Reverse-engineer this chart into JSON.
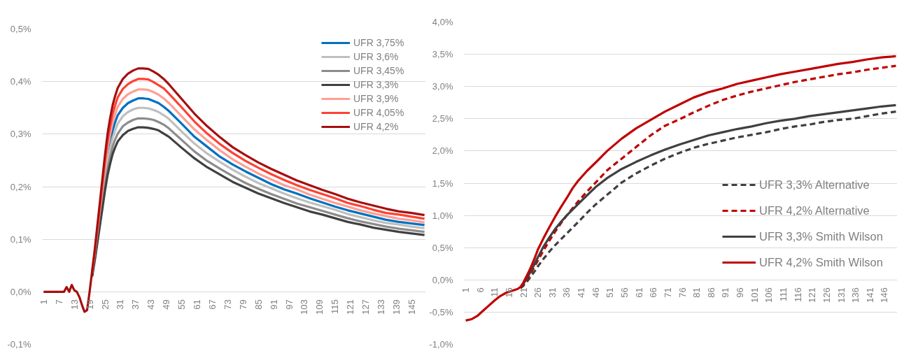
{
  "chart_data": [
    {
      "type": "line",
      "legend": "top right",
      "grid": "y",
      "line_style": "solid",
      "xlim": [
        0.5,
        150.5
      ],
      "xticks": [
        1,
        7,
        13,
        19,
        25,
        31,
        37,
        43,
        49,
        55,
        61,
        67,
        73,
        79,
        85,
        91,
        97,
        103,
        109,
        115,
        121,
        127,
        133,
        139,
        145
      ],
      "ylim": [
        -0.1,
        0.5
      ],
      "yticks": [
        {
          "value": -0.1,
          "label": "-0,1%"
        },
        {
          "value": 0.0,
          "label": "0,0%"
        },
        {
          "value": 0.1,
          "label": "0,1%"
        },
        {
          "value": 0.2,
          "label": "0,2%"
        },
        {
          "value": 0.3,
          "label": "0,3%"
        },
        {
          "value": 0.4,
          "label": "0,4%"
        },
        {
          "value": 0.5,
          "label": "0,5%"
        }
      ],
      "x": [
        1,
        9,
        10,
        11,
        12,
        13,
        14,
        15,
        16,
        17,
        18,
        19,
        20,
        21,
        22,
        23,
        24,
        25,
        26,
        27,
        28,
        29,
        30,
        32,
        34,
        36,
        38,
        40,
        42,
        44,
        46,
        48,
        50,
        55,
        60,
        65,
        70,
        75,
        80,
        85,
        90,
        95,
        100,
        105,
        110,
        115,
        120,
        125,
        130,
        135,
        140,
        145,
        150
      ],
      "series": [
        {
          "name": "UFR 3,75%",
          "color": "#0070c0",
          "values": [
            null,
            null,
            null,
            null,
            null,
            null,
            null,
            null,
            null,
            null,
            null,
            null,
            null,
            null,
            null,
            null,
            null,
            0.225,
            0.26,
            0.285,
            0.307,
            0.323,
            0.336,
            0.35,
            0.359,
            0.364,
            0.368,
            0.368,
            0.367,
            0.363,
            0.359,
            0.352,
            0.344,
            0.32,
            0.295,
            0.276,
            0.257,
            0.242,
            0.229,
            0.217,
            0.205,
            0.195,
            0.187,
            0.178,
            0.17,
            0.162,
            0.155,
            0.149,
            0.143,
            0.137,
            0.133,
            0.13,
            0.127
          ]
        },
        {
          "name": "UFR 3,6%",
          "color": "#bfbfbf",
          "values": [
            null,
            null,
            null,
            null,
            null,
            null,
            null,
            null,
            null,
            null,
            null,
            null,
            0.033,
            0.066,
            0.103,
            0.14,
            0.177,
            0.214,
            0.247,
            0.272,
            0.293,
            0.307,
            0.32,
            0.334,
            0.342,
            0.347,
            0.35,
            0.35,
            0.349,
            0.346,
            0.342,
            0.336,
            0.329,
            0.305,
            0.282,
            0.263,
            0.247,
            0.232,
            0.219,
            0.207,
            0.197,
            0.187,
            0.178,
            0.17,
            0.163,
            0.156,
            0.148,
            0.142,
            0.136,
            0.131,
            0.128,
            0.124,
            0.121
          ]
        },
        {
          "name": "UFR 3,45%",
          "color": "#8c8c8c",
          "values": [
            null,
            null,
            null,
            null,
            null,
            null,
            null,
            null,
            null,
            null,
            null,
            null,
            0.031,
            0.062,
            0.097,
            0.132,
            0.167,
            0.202,
            0.233,
            0.256,
            0.276,
            0.29,
            0.301,
            0.315,
            0.322,
            0.327,
            0.33,
            0.33,
            0.329,
            0.327,
            0.323,
            0.318,
            0.311,
            0.289,
            0.267,
            0.249,
            0.234,
            0.22,
            0.207,
            0.196,
            0.186,
            0.177,
            0.168,
            0.161,
            0.154,
            0.147,
            0.14,
            0.134,
            0.129,
            0.124,
            0.12,
            0.117,
            0.114
          ]
        },
        {
          "name": "UFR 3,3%",
          "color": "#404040",
          "values": [
            null,
            null,
            null,
            null,
            null,
            null,
            null,
            null,
            null,
            null,
            null,
            null,
            0.029,
            0.059,
            0.092,
            0.125,
            0.158,
            0.192,
            0.221,
            0.243,
            0.262,
            0.275,
            0.286,
            0.298,
            0.306,
            0.31,
            0.313,
            0.313,
            0.312,
            0.31,
            0.307,
            0.301,
            0.295,
            0.274,
            0.254,
            0.237,
            0.223,
            0.209,
            0.198,
            0.187,
            0.178,
            0.169,
            0.161,
            0.153,
            0.147,
            0.14,
            0.133,
            0.128,
            0.122,
            0.118,
            0.114,
            0.111,
            0.108
          ]
        },
        {
          "name": "UFR 3,9%",
          "color": "#ff9f94",
          "values": [
            null,
            null,
            null,
            null,
            null,
            null,
            null,
            null,
            null,
            null,
            null,
            null,
            0.036,
            0.072,
            0.113,
            0.154,
            0.195,
            0.236,
            0.272,
            0.299,
            0.322,
            0.338,
            0.352,
            0.367,
            0.376,
            0.381,
            0.385,
            0.385,
            0.384,
            0.38,
            0.375,
            0.368,
            0.359,
            0.334,
            0.309,
            0.288,
            0.269,
            0.252,
            0.238,
            0.225,
            0.214,
            0.203,
            0.195,
            0.185,
            0.177,
            0.169,
            0.162,
            0.155,
            0.149,
            0.144,
            0.139,
            0.136,
            0.132
          ]
        },
        {
          "name": "UFR 4,05%",
          "color": "#ff4133",
          "values": [
            null,
            null,
            null,
            null,
            null,
            null,
            null,
            null,
            null,
            null,
            null,
            null,
            0.038,
            0.076,
            0.119,
            0.162,
            0.205,
            0.248,
            0.286,
            0.314,
            0.338,
            0.355,
            0.37,
            0.386,
            0.395,
            0.401,
            0.405,
            0.405,
            0.404,
            0.399,
            0.393,
            0.387,
            0.377,
            0.351,
            0.324,
            0.301,
            0.281,
            0.264,
            0.249,
            0.236,
            0.224,
            0.213,
            0.203,
            0.194,
            0.186,
            0.178,
            0.169,
            0.163,
            0.156,
            0.15,
            0.147,
            0.143,
            0.139
          ]
        },
        {
          "name": "UFR 4,2%",
          "color": "#a50f0f",
          "values": [
            0,
            0,
            0.009,
            0,
            0.013,
            0.003,
            0,
            -0.01,
            -0.025,
            -0.038,
            -0.035,
            0.0,
            0.04,
            0.08,
            0.125,
            0.17,
            0.215,
            0.26,
            0.3,
            0.33,
            0.355,
            0.373,
            0.388,
            0.405,
            0.415,
            0.421,
            0.425,
            0.425,
            0.424,
            0.419,
            0.413,
            0.405,
            0.395,
            0.367,
            0.339,
            0.315,
            0.294,
            0.275,
            0.26,
            0.246,
            0.234,
            0.223,
            0.212,
            0.203,
            0.194,
            0.186,
            0.177,
            0.17,
            0.164,
            0.158,
            0.153,
            0.15,
            0.146
          ]
        }
      ]
    },
    {
      "type": "line",
      "legend": "right",
      "grid": "y",
      "xlim": [
        0.5,
        150.5
      ],
      "xticks": [
        1,
        6,
        11,
        16,
        21,
        26,
        31,
        36,
        41,
        46,
        51,
        56,
        61,
        66,
        71,
        76,
        81,
        86,
        91,
        96,
        101,
        106,
        111,
        116,
        121,
        126,
        131,
        136,
        141,
        146
      ],
      "ylim": [
        -1.0,
        4.0
      ],
      "yticks": [
        {
          "value": -1.0,
          "label": "-1,0%"
        },
        {
          "value": -0.5,
          "label": "-0,5%"
        },
        {
          "value": 0.0,
          "label": "0,0%"
        },
        {
          "value": 0.5,
          "label": "0,5%"
        },
        {
          "value": 1.0,
          "label": "1,0%"
        },
        {
          "value": 1.5,
          "label": "1,5%"
        },
        {
          "value": 2.0,
          "label": "2,0%"
        },
        {
          "value": 2.5,
          "label": "2,5%"
        },
        {
          "value": 3.0,
          "label": "3,0%"
        },
        {
          "value": 3.5,
          "label": "3,5%"
        },
        {
          "value": 4.0,
          "label": "4,0%"
        }
      ],
      "x": [
        1,
        3,
        5,
        7,
        9,
        11,
        13,
        15,
        17,
        19,
        20,
        21,
        22,
        23,
        24,
        25,
        26,
        28,
        30,
        32,
        34,
        36,
        38,
        40,
        43,
        46,
        50,
        55,
        60,
        65,
        70,
        75,
        80,
        85,
        90,
        95,
        100,
        105,
        110,
        115,
        120,
        125,
        130,
        135,
        140,
        145,
        150
      ],
      "series": [
        {
          "name": "UFR 3,3% Alternative",
          "color": "#404040",
          "line_style": "dashed",
          "values": [
            null,
            null,
            null,
            null,
            null,
            null,
            null,
            null,
            null,
            null,
            -0.13,
            -0.09,
            -0.04,
            0.02,
            0.08,
            0.14,
            0.21,
            0.33,
            0.44,
            0.54,
            0.63,
            0.72,
            0.81,
            0.9,
            1.04,
            1.17,
            1.32,
            1.51,
            1.65,
            1.77,
            1.88,
            1.97,
            2.05,
            2.11,
            2.16,
            2.21,
            2.25,
            2.29,
            2.34,
            2.38,
            2.41,
            2.45,
            2.48,
            2.5,
            2.54,
            2.58,
            2.61
          ]
        },
        {
          "name": "UFR 4,2% Alternative",
          "color": "#c00000",
          "line_style": "dashed",
          "values": [
            null,
            null,
            null,
            null,
            null,
            null,
            null,
            null,
            null,
            null,
            -0.12,
            -0.07,
            -0.01,
            0.06,
            0.14,
            0.22,
            0.3,
            0.46,
            0.61,
            0.75,
            0.88,
            1.0,
            1.11,
            1.22,
            1.37,
            1.51,
            1.7,
            1.88,
            2.06,
            2.24,
            2.39,
            2.49,
            2.6,
            2.7,
            2.79,
            2.86,
            2.92,
            2.97,
            3.02,
            3.07,
            3.11,
            3.15,
            3.19,
            3.22,
            3.26,
            3.29,
            3.32
          ]
        },
        {
          "name": "UFR 3,3% Smith Wilson",
          "color": "#404040",
          "line_style": "solid",
          "values": [
            null,
            null,
            null,
            null,
            null,
            null,
            null,
            null,
            null,
            null,
            -0.12,
            -0.06,
            0.01,
            0.09,
            0.17,
            0.26,
            0.35,
            0.52,
            0.66,
            0.79,
            0.9,
            1.0,
            1.09,
            1.18,
            1.31,
            1.44,
            1.58,
            1.72,
            1.83,
            1.93,
            2.02,
            2.1,
            2.17,
            2.24,
            2.29,
            2.34,
            2.38,
            2.43,
            2.47,
            2.5,
            2.54,
            2.57,
            2.6,
            2.63,
            2.66,
            2.69,
            2.71
          ]
        },
        {
          "name": "UFR 4,2% Smith Wilson",
          "color": "#c00000",
          "line_style": "solid",
          "values": [
            -0.63,
            -0.61,
            -0.56,
            -0.48,
            -0.4,
            -0.32,
            -0.25,
            -0.2,
            -0.17,
            -0.14,
            -0.11,
            -0.04,
            0.05,
            0.14,
            0.24,
            0.35,
            0.47,
            0.65,
            0.82,
            0.98,
            1.13,
            1.27,
            1.42,
            1.54,
            1.69,
            1.82,
            2.0,
            2.19,
            2.35,
            2.48,
            2.61,
            2.72,
            2.83,
            2.91,
            2.97,
            3.04,
            3.09,
            3.14,
            3.19,
            3.23,
            3.27,
            3.31,
            3.35,
            3.38,
            3.42,
            3.45,
            3.47
          ]
        }
      ]
    }
  ]
}
